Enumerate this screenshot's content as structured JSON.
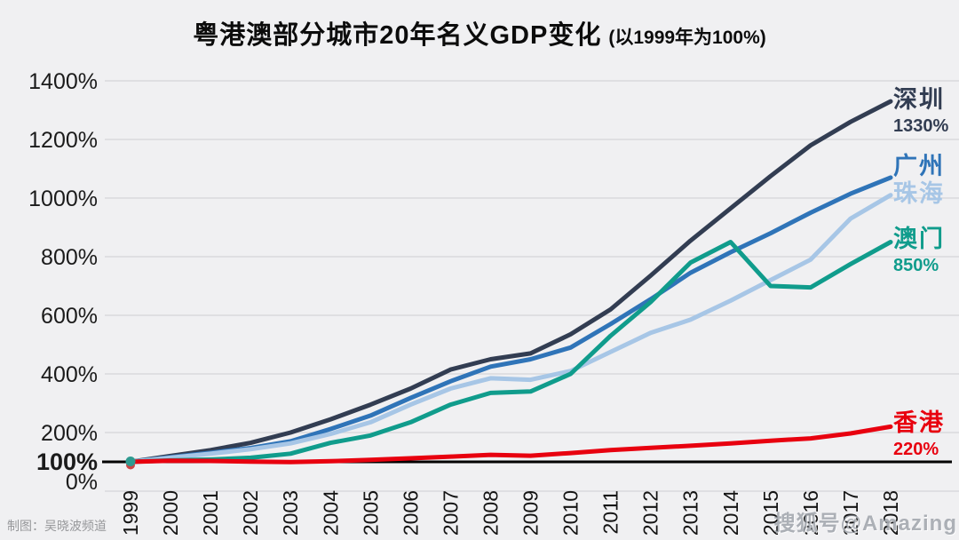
{
  "title": {
    "main": "粤港澳部分城市20年名义GDP变化",
    "suffix": "(以1999年为100%)"
  },
  "chart_data": {
    "type": "line",
    "title": "粤港澳部分城市20年名义GDP变化 (以1999年为100%)",
    "x": [
      "1999",
      "2000",
      "2001",
      "2002",
      "2003",
      "2004",
      "2005",
      "2006",
      "2007",
      "2008",
      "2009",
      "2010",
      "2011",
      "2012",
      "2013",
      "2014",
      "2015",
      "2016",
      "2017",
      "2018"
    ],
    "ylim": [
      0,
      1400
    ],
    "grid": true,
    "legend_position": "right-end-labels",
    "baseline_value": 100,
    "y_ticks": [
      {
        "label": "1400%",
        "value": 1400
      },
      {
        "label": "1200%",
        "value": 1200
      },
      {
        "label": "1000%",
        "value": 1000
      },
      {
        "label": "800%",
        "value": 800
      },
      {
        "label": "600%",
        "value": 600
      },
      {
        "label": "400%",
        "value": 400
      },
      {
        "label": "200%",
        "value": 200
      },
      {
        "label": "100%",
        "value": 100
      },
      {
        "label": "0%",
        "value": 0
      }
    ],
    "series": [
      {
        "key": "shenzhen",
        "name": "深圳",
        "end_label": "1330%",
        "color": "#323d52",
        "values": [
          100,
          120,
          140,
          165,
          200,
          245,
          295,
          350,
          415,
          450,
          470,
          535,
          620,
          735,
          855,
          965,
          1075,
          1180,
          1260,
          1330
        ]
      },
      {
        "key": "guangzhou",
        "name": "广州",
        "color": "#2f74b8",
        "values": [
          100,
          116,
          131,
          147,
          170,
          212,
          258,
          318,
          375,
          425,
          450,
          490,
          570,
          655,
          745,
          815,
          880,
          950,
          1015,
          1070
        ]
      },
      {
        "key": "zhuhai",
        "name": "珠海",
        "color": "#a7c6e6",
        "values": [
          100,
          114,
          128,
          143,
          163,
          195,
          235,
          295,
          350,
          385,
          380,
          410,
          475,
          540,
          585,
          650,
          720,
          790,
          930,
          1010
        ]
      },
      {
        "key": "macau",
        "name": "澳门",
        "end_label": "850%",
        "color": "#109c8c",
        "values": [
          100,
          105,
          108,
          114,
          128,
          165,
          190,
          235,
          295,
          335,
          340,
          400,
          530,
          645,
          780,
          850,
          700,
          695,
          775,
          850
        ]
      },
      {
        "key": "hongkong",
        "name": "香港",
        "end_label": "220%",
        "color": "#e8000f",
        "values": [
          100,
          104,
          103,
          101,
          99,
          102,
          107,
          112,
          118,
          124,
          121,
          130,
          140,
          148,
          155,
          163,
          172,
          180,
          197,
          220
        ]
      }
    ]
  },
  "footer": {
    "credit": "制图：吴晓波频道",
    "watermark": "搜狐号@Amazing"
  }
}
